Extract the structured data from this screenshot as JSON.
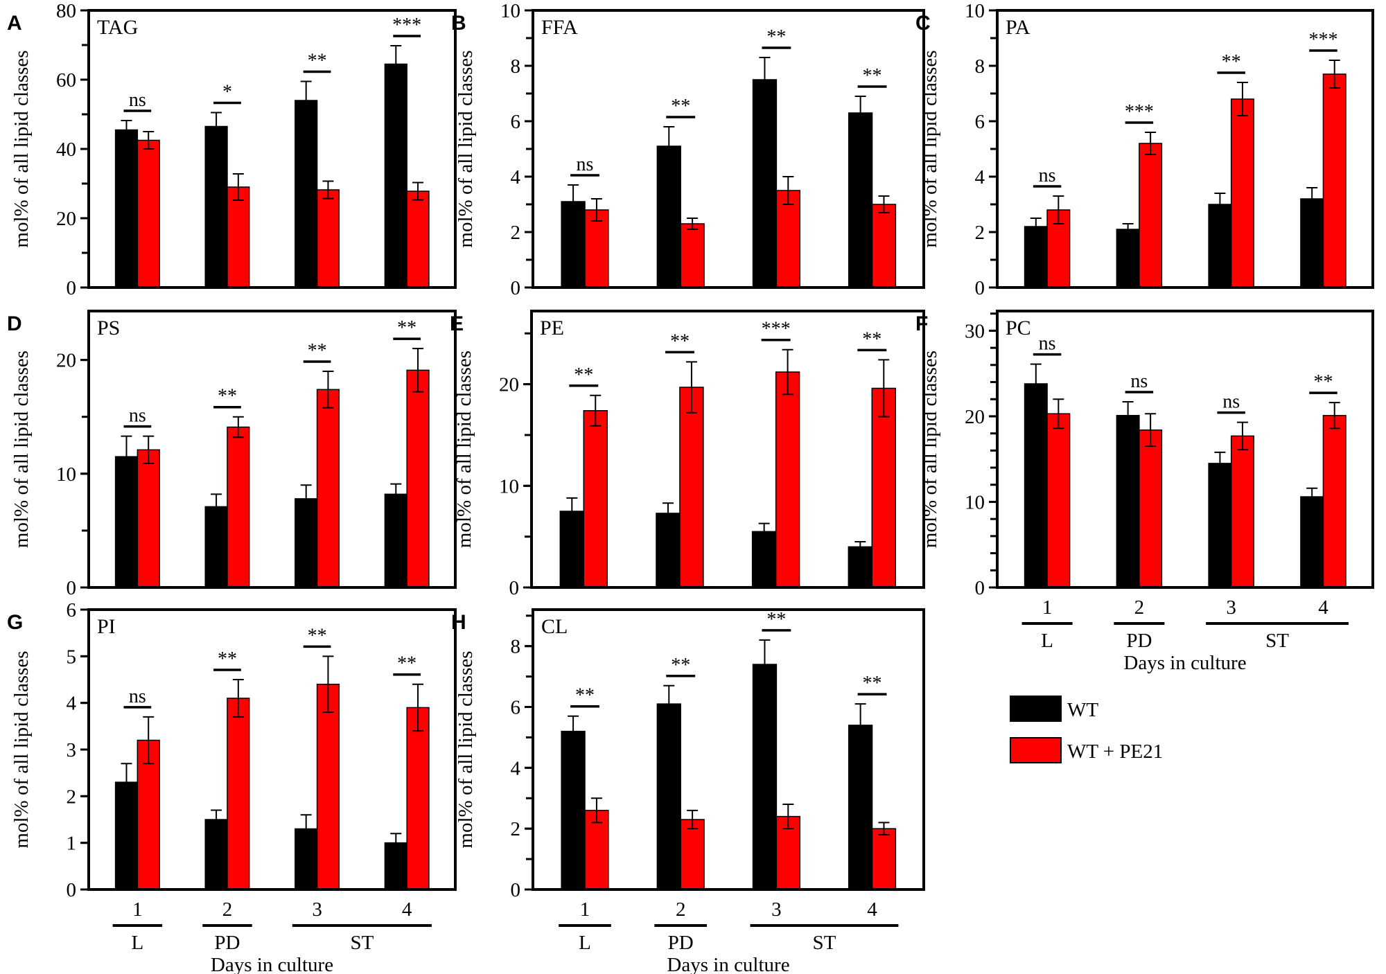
{
  "legend": {
    "items": [
      {
        "label": "WT",
        "color": "#000000"
      },
      {
        "label": "WT + PE21",
        "color": "#ff0000"
      }
    ]
  },
  "chart_data": [
    {
      "panel": "A",
      "type": "bar",
      "title": "TAG",
      "ylabel": "mol% of all lipid classes",
      "xlabel": "",
      "ylim": [
        0,
        80
      ],
      "yticks": [
        0,
        20,
        40,
        60,
        80
      ],
      "minor_step": 10,
      "categories": [
        "1",
        "2",
        "3",
        "4"
      ],
      "phases": [],
      "series": [
        {
          "name": "WT",
          "values": [
            45.5,
            46.5,
            54,
            64.5
          ],
          "errors": [
            2.7,
            4,
            5.5,
            5.3
          ]
        },
        {
          "name": "WT + PE21",
          "values": [
            42.5,
            29,
            28.2,
            27.8
          ],
          "errors": [
            2.5,
            3.8,
            2.5,
            2.5
          ]
        }
      ],
      "significance": [
        "ns",
        "*",
        "**",
        "***"
      ]
    },
    {
      "panel": "B",
      "type": "bar",
      "title": "FFA",
      "ylabel": "mol% of all lipid classes",
      "xlabel": "",
      "ylim": [
        0,
        10
      ],
      "yticks": [
        0,
        2,
        4,
        6,
        8,
        10
      ],
      "minor_step": 1,
      "categories": [
        "1",
        "2",
        "3",
        "4"
      ],
      "phases": [],
      "series": [
        {
          "name": "WT",
          "values": [
            3.1,
            5.1,
            7.5,
            6.3
          ],
          "errors": [
            0.6,
            0.7,
            0.8,
            0.6
          ]
        },
        {
          "name": "WT + PE21",
          "values": [
            2.8,
            2.3,
            3.5,
            3.0
          ],
          "errors": [
            0.4,
            0.2,
            0.5,
            0.3
          ]
        }
      ],
      "significance": [
        "ns",
        "**",
        "**",
        "**"
      ]
    },
    {
      "panel": "C",
      "type": "bar",
      "title": "PA",
      "ylabel": "mol% of all lipid classes",
      "xlabel": "",
      "ylim": [
        0,
        10
      ],
      "yticks": [
        0,
        2,
        4,
        6,
        8,
        10
      ],
      "minor_step": 1,
      "categories": [
        "1",
        "2",
        "3",
        "4"
      ],
      "phases": [],
      "series": [
        {
          "name": "WT",
          "values": [
            2.2,
            2.1,
            3.0,
            3.2
          ],
          "errors": [
            0.3,
            0.2,
            0.4,
            0.4
          ]
        },
        {
          "name": "WT + PE21",
          "values": [
            2.8,
            5.2,
            6.8,
            7.7
          ],
          "errors": [
            0.5,
            0.4,
            0.6,
            0.5
          ]
        }
      ],
      "significance": [
        "ns",
        "***",
        "**",
        "***"
      ]
    },
    {
      "panel": "D",
      "type": "bar",
      "title": "PS",
      "ylabel": "mol% of all lipid classes",
      "xlabel": "",
      "ylim": [
        0,
        24.3
      ],
      "yticks": [
        0,
        10,
        20
      ],
      "minor_step": 5,
      "categories": [
        "1",
        "2",
        "3",
        "4"
      ],
      "phases": [],
      "series": [
        {
          "name": "WT",
          "values": [
            11.5,
            7.1,
            7.8,
            8.2
          ],
          "errors": [
            1.8,
            1.1,
            1.2,
            0.9
          ]
        },
        {
          "name": "WT + PE21",
          "values": [
            12.1,
            14.1,
            17.4,
            19.1
          ],
          "errors": [
            1.2,
            0.9,
            1.6,
            1.9
          ]
        }
      ],
      "significance": [
        "ns",
        "**",
        "**",
        "**"
      ]
    },
    {
      "panel": "E",
      "type": "bar",
      "title": "PE",
      "ylabel": "mol% of all lipid classes",
      "xlabel": "",
      "ylim": [
        0,
        27.2
      ],
      "yticks": [
        0,
        10,
        20
      ],
      "minor_step": 5,
      "categories": [
        "1",
        "2",
        "3",
        "4"
      ],
      "phases": [],
      "series": [
        {
          "name": "WT",
          "values": [
            7.5,
            7.3,
            5.5,
            4.0
          ],
          "errors": [
            1.3,
            1.0,
            0.8,
            0.5
          ]
        },
        {
          "name": "WT + PE21",
          "values": [
            17.4,
            19.7,
            21.2,
            19.6
          ],
          "errors": [
            1.5,
            2.5,
            2.2,
            2.8
          ]
        }
      ],
      "significance": [
        "**",
        "**",
        "***",
        "**"
      ]
    },
    {
      "panel": "F",
      "type": "bar",
      "title": "PC",
      "ylabel": "mol% of all lipid classes",
      "xlabel": "Days in culture",
      "ylim": [
        0,
        32.3
      ],
      "yticks": [
        0,
        10,
        20,
        30
      ],
      "minor_step": 2,
      "categories": [
        "1",
        "2",
        "3",
        "4"
      ],
      "phases": [
        {
          "label": "L",
          "from": 0,
          "to": 0
        },
        {
          "label": "PD",
          "from": 1,
          "to": 1
        },
        {
          "label": "ST",
          "from": 2,
          "to": 3
        }
      ],
      "series": [
        {
          "name": "WT",
          "values": [
            23.8,
            20.1,
            14.5,
            10.6
          ],
          "errors": [
            2.3,
            1.6,
            1.3,
            1.0
          ]
        },
        {
          "name": "WT + PE21",
          "values": [
            20.3,
            18.4,
            17.7,
            20.1
          ],
          "errors": [
            1.7,
            1.9,
            1.6,
            1.5
          ]
        }
      ],
      "significance": [
        "ns",
        "ns",
        "ns",
        "**"
      ]
    },
    {
      "panel": "G",
      "type": "bar",
      "title": "PI",
      "ylabel": "mol% of all lipid classes",
      "xlabel": "Days in culture",
      "ylim": [
        0,
        6
      ],
      "yticks": [
        0,
        1,
        2,
        3,
        4,
        5,
        6
      ],
      "minor_step": 1,
      "categories": [
        "1",
        "2",
        "3",
        "4"
      ],
      "phases": [
        {
          "label": "L",
          "from": 0,
          "to": 0
        },
        {
          "label": "PD",
          "from": 1,
          "to": 1
        },
        {
          "label": "ST",
          "from": 2,
          "to": 3
        }
      ],
      "series": [
        {
          "name": "WT",
          "values": [
            2.3,
            1.5,
            1.3,
            1.0
          ],
          "errors": [
            0.4,
            0.2,
            0.3,
            0.2
          ]
        },
        {
          "name": "WT + PE21",
          "values": [
            3.2,
            4.1,
            4.4,
            3.9
          ],
          "errors": [
            0.5,
            0.4,
            0.6,
            0.5
          ]
        }
      ],
      "significance": [
        "ns",
        "**",
        "**",
        "**"
      ]
    },
    {
      "panel": "H",
      "type": "bar",
      "title": "CL",
      "ylabel": "mol% of all lipid classes",
      "xlabel": "Days in culture",
      "ylim": [
        0,
        9.2
      ],
      "yticks": [
        0,
        2,
        4,
        6,
        8
      ],
      "minor_step": 1,
      "categories": [
        "1",
        "2",
        "3",
        "4"
      ],
      "phases": [
        {
          "label": "L",
          "from": 0,
          "to": 0
        },
        {
          "label": "PD",
          "from": 1,
          "to": 1
        },
        {
          "label": "ST",
          "from": 2,
          "to": 3
        }
      ],
      "series": [
        {
          "name": "WT",
          "values": [
            5.2,
            6.1,
            7.4,
            5.4
          ],
          "errors": [
            0.5,
            0.6,
            0.8,
            0.7
          ]
        },
        {
          "name": "WT + PE21",
          "values": [
            2.6,
            2.3,
            2.4,
            2.0
          ],
          "errors": [
            0.4,
            0.3,
            0.4,
            0.2
          ]
        }
      ],
      "significance": [
        "**",
        "**",
        "**",
        "**"
      ]
    }
  ]
}
